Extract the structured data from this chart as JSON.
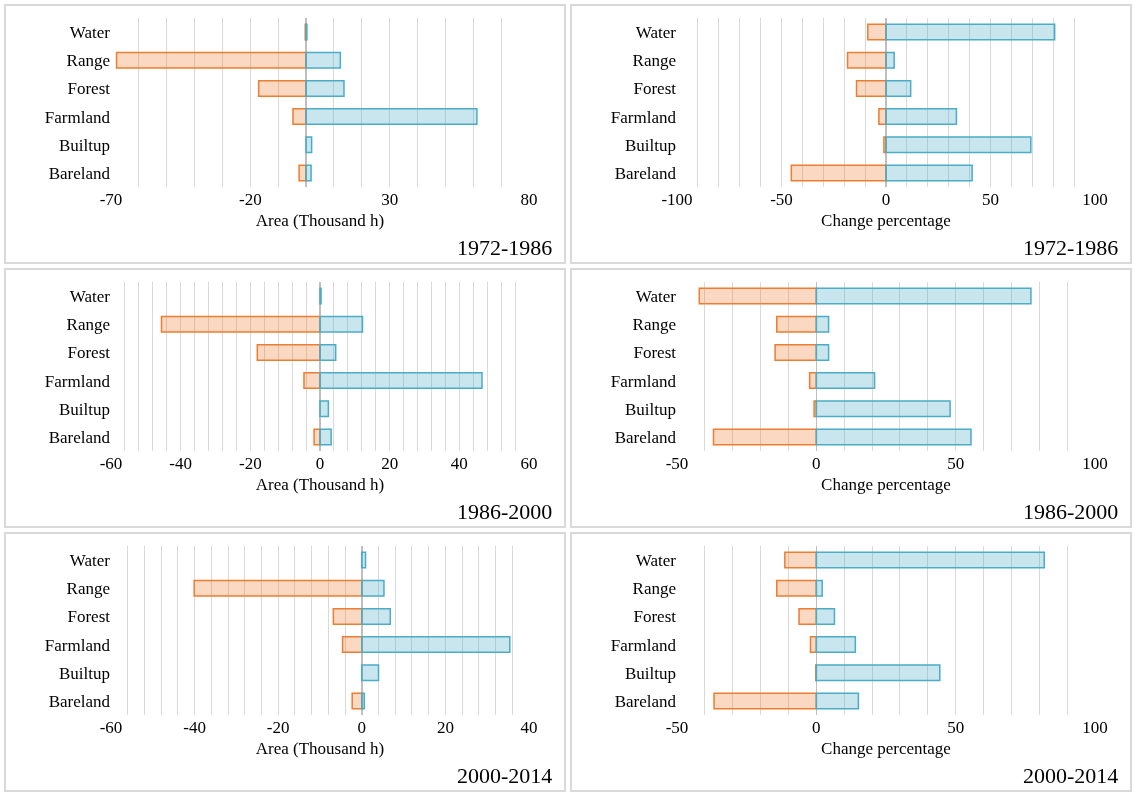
{
  "chart_data": [
    {
      "type": "bar",
      "orientation": "horizontal",
      "stacked": true,
      "xlabel": "Area (Thousand h)",
      "annotations": [
        "1972-1986"
      ],
      "categories": [
        "Water",
        "Range",
        "Forest",
        "Farmland",
        "Builtup",
        "Bareland"
      ],
      "grid": "x",
      "xlim": [
        -70,
        80
      ],
      "xticks": [
        -70,
        {
          "value": -60,
          "label": null
        },
        {
          "value": -50,
          "label": null
        },
        {
          "value": -40,
          "label": null
        },
        {
          "value": -30,
          "label": null
        },
        -20,
        {
          "value": -10,
          "label": null
        },
        {
          "value": 0,
          "label": null
        },
        {
          "value": 10,
          "label": null
        },
        {
          "value": 20,
          "label": null
        },
        30,
        {
          "value": 40,
          "label": null
        },
        {
          "value": 50,
          "label": null
        },
        {
          "value": 60,
          "label": null
        },
        {
          "value": 70,
          "label": null
        },
        80
      ],
      "series": [
        {
          "color": "#ed7d31",
          "values": [
            -0.3,
            -68,
            -17,
            -4.7,
            null,
            -2.5
          ]
        },
        {
          "color": "#4bacc6",
          "values": [
            0.3,
            12.3,
            13.6,
            61.3,
            2,
            1.8
          ]
        }
      ]
    },
    {
      "type": "bar",
      "orientation": "horizontal",
      "stacked": true,
      "xlabel": "Change percentage",
      "annotations": [
        "1972-1986"
      ],
      "categories": [
        "Water",
        "Range",
        "Forest",
        "Farmland",
        "Builtup",
        "Bareland"
      ],
      "grid": "x",
      "xlim": [
        -100,
        100
      ],
      "xticks": [
        -100,
        {
          "value": -90,
          "label": null
        },
        {
          "value": -80,
          "label": null
        },
        {
          "value": -70,
          "label": null
        },
        {
          "value": -60,
          "label": null
        },
        -50,
        {
          "value": -40,
          "label": null
        },
        {
          "value": -30,
          "label": null
        },
        {
          "value": -20,
          "label": null
        },
        {
          "value": -10,
          "label": null
        },
        0,
        {
          "value": 10,
          "label": null
        },
        {
          "value": 20,
          "label": null
        },
        {
          "value": 30,
          "label": null
        },
        {
          "value": 40,
          "label": null
        },
        50,
        {
          "value": 60,
          "label": null
        },
        {
          "value": 70,
          "label": null
        },
        {
          "value": 80,
          "label": null
        },
        {
          "value": 90,
          "label": null
        },
        100
      ],
      "series": [
        {
          "color": "#ed7d31",
          "values": [
            -8.7,
            -18.4,
            -14.1,
            -3.4,
            -1,
            -45.3
          ]
        },
        {
          "color": "#4bacc6",
          "values": [
            80.7,
            3.9,
            11.8,
            33.7,
            69.3,
            41.2
          ]
        }
      ]
    },
    {
      "type": "bar",
      "orientation": "horizontal",
      "stacked": true,
      "xlabel": "Area (Thousand h)",
      "annotations": [
        "1986-2000"
      ],
      "categories": [
        "Water",
        "Range",
        "Forest",
        "Farmland",
        "Builtup",
        "Bareland"
      ],
      "grid": "x",
      "xlim": [
        -60,
        60
      ],
      "xticks": [
        -60,
        {
          "value": -56,
          "label": null
        },
        {
          "value": -52,
          "label": null
        },
        {
          "value": -48,
          "label": null
        },
        {
          "value": -44,
          "label": null
        },
        -40,
        {
          "value": -36,
          "label": null
        },
        {
          "value": -32,
          "label": null
        },
        {
          "value": -28,
          "label": null
        },
        {
          "value": -24,
          "label": null
        },
        -20,
        {
          "value": -16,
          "label": null
        },
        {
          "value": -12,
          "label": null
        },
        {
          "value": -8,
          "label": null
        },
        {
          "value": -4,
          "label": null
        },
        0,
        {
          "value": 4,
          "label": null
        },
        {
          "value": 8,
          "label": null
        },
        {
          "value": 12,
          "label": null
        },
        {
          "value": 16,
          "label": null
        },
        20,
        {
          "value": 24,
          "label": null
        },
        {
          "value": 28,
          "label": null
        },
        {
          "value": 32,
          "label": null
        },
        {
          "value": 36,
          "label": null
        },
        40,
        {
          "value": 44,
          "label": null
        },
        {
          "value": 48,
          "label": null
        },
        {
          "value": 52,
          "label": null
        },
        {
          "value": 56,
          "label": null
        },
        60
      ],
      "series": [
        {
          "color": "#ed7d31",
          "values": [
            null,
            -45.5,
            -18,
            -4.6,
            null,
            -1.7
          ]
        },
        {
          "color": "#4bacc6",
          "values": [
            0.3,
            12.2,
            4.5,
            46.5,
            2.4,
            3.2
          ]
        }
      ]
    },
    {
      "type": "bar",
      "orientation": "horizontal",
      "stacked": true,
      "xlabel": "Change percentage",
      "annotations": [
        "1986-2000"
      ],
      "categories": [
        "Water",
        "Range",
        "Forest",
        "Farmland",
        "Builtup",
        "Bareland"
      ],
      "grid": "x",
      "xlim": [
        -50,
        100
      ],
      "xticks": [
        -50,
        {
          "value": -40,
          "label": null
        },
        {
          "value": -30,
          "label": null
        },
        {
          "value": -20,
          "label": null
        },
        {
          "value": -10,
          "label": null
        },
        0,
        {
          "value": 10,
          "label": null
        },
        {
          "value": 20,
          "label": null
        },
        {
          "value": 30,
          "label": null
        },
        {
          "value": 40,
          "label": null
        },
        50,
        {
          "value": 60,
          "label": null
        },
        {
          "value": 70,
          "label": null
        },
        {
          "value": 80,
          "label": null
        },
        {
          "value": 90,
          "label": null
        },
        100
      ],
      "series": [
        {
          "color": "#ed7d31",
          "values": [
            -42,
            -14.2,
            -14.8,
            -2.4,
            -0.8,
            -36.9
          ]
        },
        {
          "color": "#4bacc6",
          "values": [
            77,
            4.4,
            4.4,
            20.9,
            48,
            55.5
          ]
        }
      ]
    },
    {
      "type": "bar",
      "orientation": "horizontal",
      "stacked": true,
      "xlabel": "Area (Thousand h)",
      "annotations": [
        "2000-2014"
      ],
      "categories": [
        "Water",
        "Range",
        "Forest",
        "Farmland",
        "Builtup",
        "Bareland"
      ],
      "grid": "x",
      "xlim": [
        -60,
        40
      ],
      "xticks": [
        -60,
        {
          "value": -56,
          "label": null
        },
        {
          "value": -52,
          "label": null
        },
        {
          "value": -48,
          "label": null
        },
        {
          "value": -44,
          "label": null
        },
        -40,
        {
          "value": -36,
          "label": null
        },
        {
          "value": -32,
          "label": null
        },
        {
          "value": -28,
          "label": null
        },
        {
          "value": -24,
          "label": null
        },
        -20,
        {
          "value": -16,
          "label": null
        },
        {
          "value": -12,
          "label": null
        },
        {
          "value": -8,
          "label": null
        },
        {
          "value": -4,
          "label": null
        },
        0,
        {
          "value": 4,
          "label": null
        },
        {
          "value": 8,
          "label": null
        },
        {
          "value": 12,
          "label": null
        },
        {
          "value": 16,
          "label": null
        },
        20,
        {
          "value": 24,
          "label": null
        },
        {
          "value": 28,
          "label": null
        },
        {
          "value": 32,
          "label": null
        },
        {
          "value": 36,
          "label": null
        },
        40
      ],
      "series": [
        {
          "color": "#ed7d31",
          "values": [
            null,
            -40.1,
            -6.8,
            -4.6,
            null,
            -2.3
          ]
        },
        {
          "color": "#4bacc6",
          "values": [
            0.9,
            5.3,
            6.8,
            35.4,
            4,
            0.6
          ]
        }
      ]
    },
    {
      "type": "bar",
      "orientation": "horizontal",
      "stacked": true,
      "xlabel": "Change percentage",
      "annotations": [
        "2000-2014"
      ],
      "categories": [
        "Water",
        "Range",
        "Forest",
        "Farmland",
        "Builtup",
        "Bareland"
      ],
      "grid": "x",
      "xlim": [
        -50,
        100
      ],
      "xticks": [
        -50,
        {
          "value": -40,
          "label": null
        },
        {
          "value": -30,
          "label": null
        },
        {
          "value": -20,
          "label": null
        },
        {
          "value": -10,
          "label": null
        },
        0,
        {
          "value": 10,
          "label": null
        },
        {
          "value": 20,
          "label": null
        },
        {
          "value": 30,
          "label": null
        },
        {
          "value": 40,
          "label": null
        },
        50,
        {
          "value": 60,
          "label": null
        },
        {
          "value": 70,
          "label": null
        },
        {
          "value": 80,
          "label": null
        },
        {
          "value": 90,
          "label": null
        },
        100
      ],
      "series": [
        {
          "color": "#ed7d31",
          "values": [
            -11.3,
            -14.2,
            -6.2,
            -2.1,
            -0.2,
            -36.7
          ]
        },
        {
          "color": "#4bacc6",
          "values": [
            81.8,
            2.1,
            6.5,
            14,
            44.3,
            15.1
          ]
        }
      ]
    }
  ]
}
